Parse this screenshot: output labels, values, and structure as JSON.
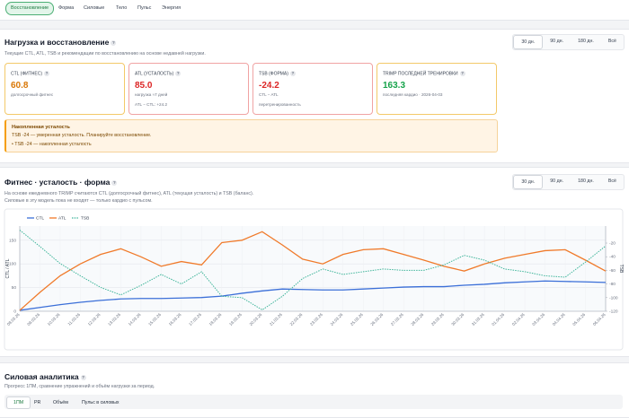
{
  "tabs": [
    "Восстановление",
    "Форма",
    "Силовые",
    "Тело",
    "Пульс",
    "Энергия"
  ],
  "help_icon": "?",
  "recovery": {
    "title": "Нагрузка и восстановление",
    "subtitle": "Текущие CTL, ATL, TSB и рекомендации по восстановлению на основе недавней нагрузки.",
    "ranges": [
      "30 дн.",
      "90 дн.",
      "180 дн.",
      "Всё"
    ],
    "metrics": [
      {
        "label": "CTL (ФИТНЕС)",
        "value": "60.8",
        "notes": [
          "долгосрочный фитнес"
        ]
      },
      {
        "label": "ATL (УСТАЛОСТЬ)",
        "value": "85.0",
        "notes": [
          "нагрузка ≈7 дней",
          "ATL − CTL: +24.2"
        ]
      },
      {
        "label": "TSB (ФОРМА)",
        "value": "-24.2",
        "notes": [
          "CTL − ATL",
          "перетренированность"
        ]
      },
      {
        "label": "TRIMP ПОСЛЕДНЕЙ ТРЕНИРОВКИ",
        "value": "163.3",
        "notes": [
          "последняя кардио · 2026-04-03"
        ]
      }
    ],
    "alert": {
      "title": "Накопленная усталость",
      "text": "TSB -24 — умеренная усталость. Планируйте восстановление.",
      "bullets": [
        "TSB -24 — накопленная усталость"
      ]
    }
  },
  "fitness": {
    "title": "Фитнес · усталость · форма",
    "ranges": [
      "30 дн.",
      "90 дн.",
      "180 дн.",
      "Всё"
    ],
    "description": [
      "На основе ежедневного TRIMP считаются CTL (долгосрочный фитнес), ATL (текущая усталость) и TSB (баланс).",
      "Силовые в эту модель пока не входят — только кардио с пульсом."
    ]
  },
  "chart_data": {
    "type": "line",
    "x": [
      "08.03.26",
      "09.03.26",
      "10.03.26",
      "11.03.26",
      "12.03.26",
      "13.03.26",
      "14.03.26",
      "15.03.26",
      "16.03.26",
      "17.03.26",
      "18.03.26",
      "19.03.26",
      "20.03.26",
      "21.03.26",
      "22.03.26",
      "23.03.26",
      "24.03.26",
      "25.03.26",
      "26.03.26",
      "27.03.26",
      "28.03.26",
      "29.03.26",
      "30.03.26",
      "31.03.26",
      "01.04.26",
      "02.04.26",
      "03.04.26",
      "04.04.26",
      "05.04.26",
      "06.04.26"
    ],
    "series": [
      {
        "name": "CTL",
        "color": "#3b6fd8",
        "values": [
          2,
          8,
          14,
          19,
          23,
          26,
          27,
          27,
          28,
          29,
          32,
          38,
          43,
          47,
          46,
          45,
          45,
          47,
          49,
          51,
          52,
          52,
          55,
          57,
          60,
          62,
          64,
          63,
          62,
          60.8
        ]
      },
      {
        "name": "ATL",
        "color": "#f07a2a",
        "values": [
          2,
          40,
          75,
          100,
          120,
          132,
          115,
          95,
          105,
          98,
          145,
          150,
          168,
          140,
          110,
          100,
          120,
          130,
          132,
          120,
          108,
          95,
          85,
          100,
          112,
          120,
          128,
          130,
          108,
          85
        ]
      },
      {
        "name": "TSB",
        "color": "#3fb59a",
        "dashed": true,
        "axis": "y2",
        "values": [
          -1,
          -25,
          -50,
          -68,
          -85,
          -96,
          -82,
          -66,
          -80,
          -62,
          -98,
          -100,
          -118,
          -98,
          -72,
          -58,
          -66,
          -62,
          -58,
          -60,
          -60,
          -52,
          -38,
          -45,
          -58,
          -62,
          -68,
          -70,
          -48,
          -24.2
        ]
      }
    ],
    "ylabel": "CTL / ATL",
    "y2label": "TSB",
    "ylim": [
      0,
      180
    ],
    "yticks": [
      0,
      50,
      100,
      150
    ],
    "y2lim": [
      -120,
      5
    ],
    "y2ticks": [
      -20,
      -40,
      -60,
      -80,
      -100,
      -120
    ],
    "grid": true
  },
  "strength": {
    "title": "Силовая аналитика",
    "subtitle": "Прогресс 1ПМ, сравнение упражнений и объём нагрузки за период.",
    "tabs": [
      "1ПМ",
      "PR",
      "Объём",
      "Пульс в силовых"
    ]
  }
}
